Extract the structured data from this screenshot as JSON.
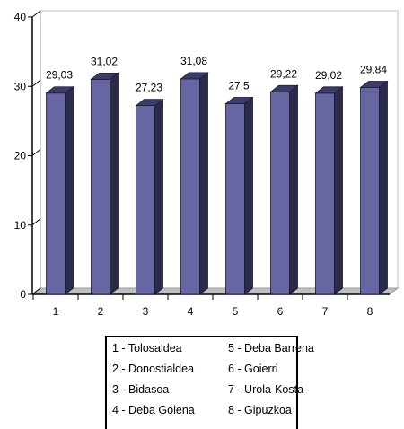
{
  "chart_data": {
    "type": "bar",
    "categories": [
      "1",
      "2",
      "3",
      "4",
      "5",
      "6",
      "7",
      "8"
    ],
    "values": [
      29.03,
      31.02,
      27.23,
      31.08,
      27.5,
      29.22,
      29.02,
      29.84
    ],
    "data_labels": [
      "29,03",
      "31,02",
      "27,23",
      "31,08",
      "27,5",
      "29,22",
      "29,02",
      "29,84"
    ],
    "y_ticks": [
      0,
      10,
      20,
      30,
      40
    ],
    "ylim": [
      0,
      40
    ],
    "grid": false,
    "legend_position": "bottom",
    "bar_color": "#6666a3",
    "bar_side_color": "#2a2a4a",
    "bar_top_color": "#3c3c6a"
  },
  "legend": {
    "items": [
      "1 - Tolosaldea",
      "2 - Donostialdea",
      "3 - Bidasoa",
      "4 - Deba Goiena",
      "5 - Deba Barrena",
      "6 - Goierri",
      "7 - Urola-Kosta",
      "8 - Gipuzkoa"
    ]
  }
}
